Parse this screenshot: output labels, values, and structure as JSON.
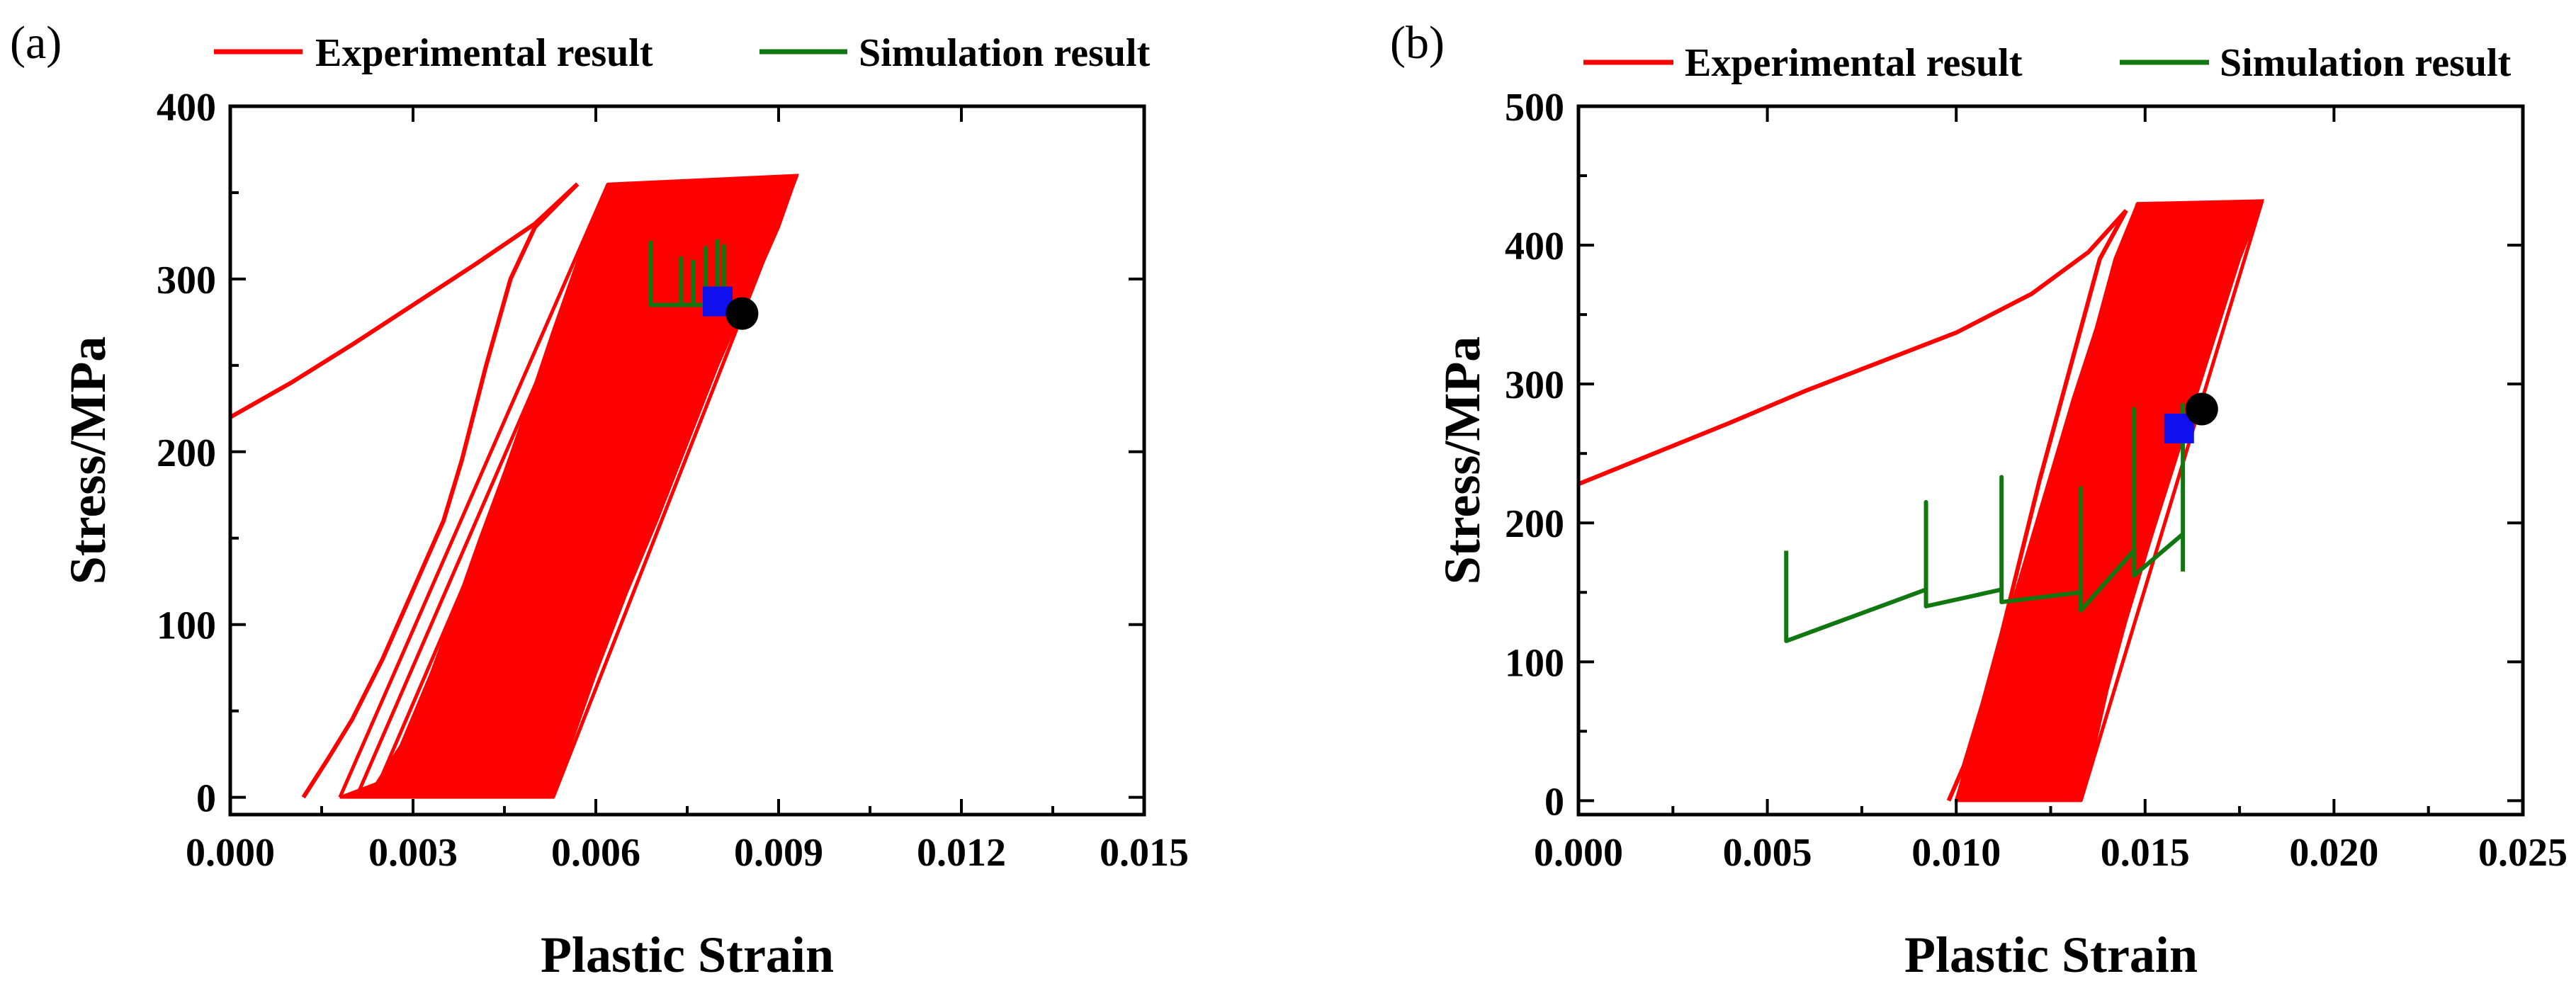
{
  "colors": {
    "experimental": "#ff0000",
    "simulation": "#117711",
    "marker_square": "#1010ee",
    "marker_circle": "#000000",
    "axis": "#000000"
  },
  "chart_data": [
    {
      "type": "line",
      "panel_label": "(a)",
      "xlabel": "Plastic Strain",
      "ylabel": "Stress/MPa",
      "xlim": [
        0.0,
        0.015
      ],
      "ylim": [
        -10,
        400
      ],
      "x_ticks": [
        0.0,
        0.003,
        0.006,
        0.009,
        0.012,
        0.015
      ],
      "x_tick_labels": [
        "0.000",
        "0.003",
        "0.006",
        "0.009",
        "0.012",
        "0.015"
      ],
      "y_ticks": [
        0,
        100,
        200,
        300,
        400
      ],
      "y_tick_labels": [
        "0",
        "100",
        "200",
        "300",
        "400"
      ],
      "legend": {
        "position": "top",
        "entries": [
          "Experimental result",
          "Simulation result"
        ]
      },
      "series": [
        {
          "name": "Experimental result",
          "style": "line",
          "x": [
            0.0,
            0.001,
            0.002,
            0.003,
            0.004,
            0.005,
            0.0057
          ],
          "y": [
            220,
            240,
            262,
            285,
            308,
            332,
            355
          ]
        },
        {
          "name": "Experimental result",
          "style": "line",
          "x": [
            0.0057,
            0.005,
            0.0046,
            0.0042,
            0.0038,
            0.0035,
            0.003,
            0.0025,
            0.002,
            0.0016,
            0.0012
          ],
          "y": [
            355,
            330,
            300,
            250,
            195,
            160,
            120,
            80,
            45,
            22,
            0
          ]
        },
        {
          "name": "Experimental result",
          "style": "band",
          "x_right": [
            0.0093,
            0.009,
            0.0085,
            0.008,
            0.0075,
            0.007,
            0.0065,
            0.006,
            0.0055,
            0.0053
          ],
          "x_left": [
            0.0062,
            0.0058,
            0.0053,
            0.0049,
            0.0045,
            0.0041,
            0.0037,
            0.0033,
            0.0028,
            0.0024,
            0.0018
          ],
          "y_right": [
            360,
            330,
            290,
            250,
            205,
            160,
            118,
            72,
            22,
            0
          ],
          "y_left": [
            355,
            320,
            270,
            228,
            188,
            150,
            110,
            72,
            30,
            8,
            0
          ]
        },
        {
          "name": "Simulation result",
          "style": "step",
          "x": [
            0.0069,
            0.0069,
            0.0069,
            0.0074,
            0.0074,
            0.0074,
            0.0076,
            0.0076,
            0.0076,
            0.0078,
            0.0078,
            0.0078,
            0.008,
            0.008,
            0.008,
            0.0081,
            0.0081
          ],
          "y": [
            322,
            285,
            285,
            285,
            312,
            285,
            285,
            310,
            285,
            285,
            318,
            285,
            285,
            322,
            285,
            286,
            320
          ]
        }
      ],
      "markers": [
        {
          "shape": "square",
          "x": 0.008,
          "y": 287
        },
        {
          "shape": "circle",
          "x": 0.0084,
          "y": 280
        }
      ]
    },
    {
      "type": "line",
      "panel_label": "(b)",
      "xlabel": "Plastic Strain",
      "ylabel": "Stress/MPa",
      "xlim": [
        0.0,
        0.025
      ],
      "ylim": [
        -10,
        500
      ],
      "x_ticks": [
        0.0,
        0.005,
        0.01,
        0.015,
        0.02,
        0.025
      ],
      "x_tick_labels": [
        "0.000",
        "0.005",
        "0.010",
        "0.015",
        "0.020",
        "0.025"
      ],
      "y_ticks": [
        0,
        100,
        200,
        300,
        400,
        500
      ],
      "y_tick_labels": [
        "0",
        "100",
        "200",
        "300",
        "400",
        "500"
      ],
      "legend": {
        "position": "top",
        "entries": [
          "Experimental result",
          "Simulation result"
        ]
      },
      "series": [
        {
          "name": "Experimental result",
          "style": "line",
          "x": [
            0.0,
            0.002,
            0.004,
            0.006,
            0.008,
            0.01,
            0.012,
            0.0135,
            0.0145
          ],
          "y": [
            228,
            250,
            272,
            295,
            316,
            337,
            365,
            395,
            425
          ]
        },
        {
          "name": "Experimental result",
          "style": "line",
          "x": [
            0.0145,
            0.0138,
            0.0133,
            0.0128,
            0.0122,
            0.0117,
            0.0112,
            0.0107,
            0.0102,
            0.0098
          ],
          "y": [
            425,
            390,
            340,
            290,
            230,
            175,
            120,
            70,
            25,
            0
          ]
        },
        {
          "name": "Experimental result",
          "style": "band",
          "x_right": [
            0.0181,
            0.0175,
            0.0168,
            0.0161,
            0.0154,
            0.0147,
            0.014,
            0.0135,
            0.0133
          ],
          "x_left": [
            0.0148,
            0.0142,
            0.0137,
            0.0131,
            0.0125,
            0.0119,
            0.0113,
            0.0107,
            0.0102,
            0.01
          ],
          "y_right": [
            432,
            390,
            330,
            270,
            210,
            150,
            80,
            20,
            0
          ],
          "y_left": [
            430,
            390,
            340,
            290,
            235,
            180,
            125,
            65,
            20,
            0
          ]
        },
        {
          "name": "Simulation result",
          "style": "step",
          "x": [
            0.0055,
            0.0055,
            0.0055,
            0.0092,
            0.0092,
            0.0092,
            0.0112,
            0.0112,
            0.0112,
            0.0133,
            0.0133,
            0.0133,
            0.0147,
            0.0147,
            0.0147,
            0.016,
            0.016,
            0.016
          ],
          "y": [
            180,
            115,
            115,
            152,
            215,
            140,
            152,
            233,
            143,
            150,
            225,
            137,
            180,
            282,
            162,
            192,
            285,
            165
          ]
        }
      ],
      "markers": [
        {
          "shape": "square",
          "x": 0.0159,
          "y": 268
        },
        {
          "shape": "circle",
          "x": 0.0165,
          "y": 282
        }
      ]
    }
  ]
}
